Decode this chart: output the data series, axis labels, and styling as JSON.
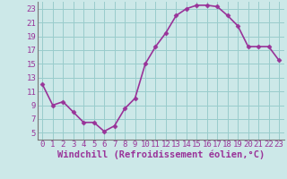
{
  "x": [
    0,
    1,
    2,
    3,
    4,
    5,
    6,
    7,
    8,
    9,
    10,
    11,
    12,
    13,
    14,
    15,
    16,
    17,
    18,
    19,
    20,
    21,
    22,
    23
  ],
  "y": [
    12,
    9,
    9.5,
    8,
    6.5,
    6.5,
    5.2,
    6,
    8.5,
    10,
    15,
    17.5,
    19.5,
    22,
    23,
    23.5,
    23.5,
    23.3,
    22,
    20.5,
    17.5,
    17.5,
    17.5,
    15.5
  ],
  "line_color": "#993399",
  "marker": "D",
  "marker_size": 2.5,
  "bg_color": "#cce8e8",
  "grid_color": "#99cccc",
  "xlabel": "Windchill (Refroidissement éolien,°C)",
  "xlim": [
    -0.5,
    23.5
  ],
  "ylim": [
    4,
    24
  ],
  "yticks": [
    5,
    7,
    9,
    11,
    13,
    15,
    17,
    19,
    21,
    23
  ],
  "xticks": [
    0,
    1,
    2,
    3,
    4,
    5,
    6,
    7,
    8,
    9,
    10,
    11,
    12,
    13,
    14,
    15,
    16,
    17,
    18,
    19,
    20,
    21,
    22,
    23
  ],
  "tick_fontsize": 6.5,
  "xlabel_fontsize": 7.5,
  "spine_color": "#777777",
  "linewidth": 1.2
}
